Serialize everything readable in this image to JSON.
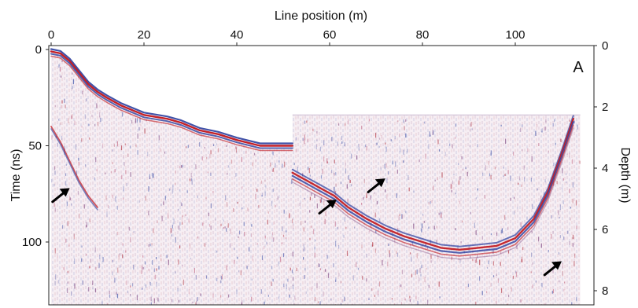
{
  "chart_data": {
    "type": "heatmap",
    "subtype": "ground-penetrating radar profile (radargram)",
    "panel_label": "A",
    "xlabel": "Line position (m)",
    "ylabel": "Time (ns)",
    "y2label": "Depth (m)",
    "x_ticks": [
      "0",
      "20",
      "40",
      "60",
      "80",
      "100"
    ],
    "y_ticks": [
      "0",
      "50",
      "100"
    ],
    "y2_ticks": [
      "0",
      "2",
      "4",
      "6",
      "8"
    ],
    "xlim": [
      0,
      114
    ],
    "ylim": [
      0,
      130
    ],
    "y2lim": [
      0,
      8.6
    ],
    "colormap": [
      "#1f3fa8",
      "#ffffff",
      "#c0141b"
    ],
    "surface_reflector": {
      "x": [
        0,
        2,
        4,
        6,
        8,
        10,
        12,
        15,
        20,
        25,
        28,
        32,
        36,
        40,
        45,
        48,
        52
      ],
      "time": [
        1,
        2,
        6,
        12,
        18,
        22,
        25,
        29,
        34,
        36,
        38,
        42,
        44,
        47,
        50,
        50,
        50
      ]
    },
    "bottom_reflector": {
      "x": [
        52,
        55,
        58,
        61,
        64,
        68,
        72,
        76,
        80,
        84,
        88,
        92,
        96,
        100,
        104,
        107,
        110,
        112.5
      ],
      "time": [
        64,
        68,
        72,
        76,
        82,
        88,
        93,
        97,
        100,
        103,
        104,
        103,
        102,
        98,
        88,
        74,
        54,
        36
      ]
    },
    "left_reflector": {
      "x": [
        0,
        2,
        4,
        6,
        8,
        10
      ],
      "time": [
        40,
        48,
        58,
        68,
        76,
        82
      ]
    },
    "water_surface_time": 34,
    "arrows": [
      {
        "x": 4,
        "time": 72,
        "direction": "up-right"
      },
      {
        "x": 61.5,
        "time": 78,
        "direction": "up-right"
      },
      {
        "x": 72,
        "time": 67,
        "direction": "up-right"
      },
      {
        "x": 110,
        "time": 110,
        "direction": "up-right"
      }
    ]
  }
}
